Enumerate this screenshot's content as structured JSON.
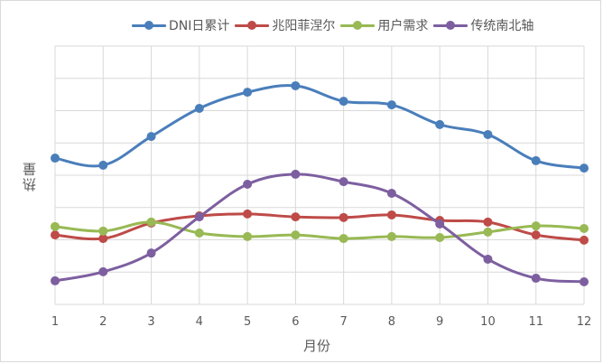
{
  "chart_data": {
    "type": "line",
    "title": "",
    "xlabel": "月份",
    "ylabel": "热量",
    "x": [
      1,
      2,
      3,
      4,
      5,
      6,
      7,
      8,
      9,
      10,
      11,
      12
    ],
    "ylim": [
      0,
      8
    ],
    "y_gridlines": 8,
    "y_ticks_shown": false,
    "grid": true,
    "legend_position": "top-right",
    "smooth": true,
    "series": [
      {
        "name": "DNI日累计",
        "color": "#4a7ebb",
        "values": [
          4.53,
          4.31,
          5.2,
          6.07,
          6.57,
          6.77,
          6.29,
          6.18,
          5.57,
          5.26,
          4.45,
          4.22
        ]
      },
      {
        "name": "兆阳菲涅尔",
        "color": "#be4b48",
        "values": [
          2.15,
          2.04,
          2.52,
          2.74,
          2.8,
          2.71,
          2.69,
          2.77,
          2.6,
          2.55,
          2.15,
          1.99
        ]
      },
      {
        "name": "用户需求",
        "color": "#98b954",
        "values": [
          2.41,
          2.27,
          2.55,
          2.21,
          2.1,
          2.15,
          2.04,
          2.1,
          2.07,
          2.24,
          2.43,
          2.35
        ]
      },
      {
        "name": "传统南北轴",
        "color": "#7d5fa0",
        "values": [
          0.73,
          1.01,
          1.59,
          2.71,
          3.72,
          4.03,
          3.8,
          3.44,
          2.49,
          1.4,
          0.81,
          0.7
        ]
      }
    ]
  },
  "legend": [
    {
      "label": "DNI日累计",
      "color": "#4a7ebb"
    },
    {
      "label": "兆阳菲涅尔",
      "color": "#be4b48"
    },
    {
      "label": "用户需求",
      "color": "#98b954"
    },
    {
      "label": "传统南北轴",
      "color": "#7d5fa0"
    }
  ],
  "axes": {
    "x_label": "月份",
    "y_label": "热量",
    "x_ticks": [
      "1",
      "2",
      "3",
      "4",
      "5",
      "6",
      "7",
      "8",
      "9",
      "10",
      "11",
      "12"
    ]
  }
}
